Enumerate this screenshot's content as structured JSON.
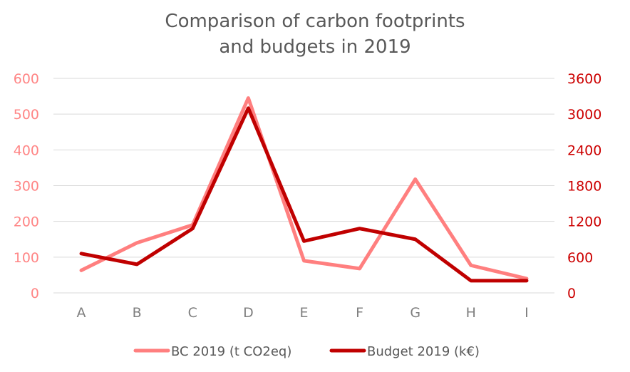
{
  "chart_data": {
    "type": "line",
    "title_lines": [
      "Comparison of carbon footprints",
      "and budgets in 2019"
    ],
    "categories": [
      "A",
      "B",
      "C",
      "D",
      "E",
      "F",
      "G",
      "H",
      "I"
    ],
    "y_left": {
      "ylim": [
        0,
        600
      ],
      "ticks": [
        "0",
        "100",
        "200",
        "300",
        "400",
        "500",
        "600"
      ],
      "color": "#ff8585"
    },
    "y_right": {
      "ylim": [
        0,
        3600
      ],
      "ticks": [
        "0",
        "600",
        "1200",
        "1800",
        "2400",
        "3000",
        "3600"
      ],
      "color": "#cc0000"
    },
    "grid": true,
    "legend_position": "bottom",
    "series": [
      {
        "name": "BC 2019 (t CO2eq)",
        "axis": "left",
        "color": "#ff7f7f",
        "values": [
          63,
          140,
          190,
          545,
          90,
          68,
          318,
          77,
          40
        ]
      },
      {
        "name": "Budget 2019 (k€)",
        "axis": "right",
        "color": "#c00000",
        "values": [
          660,
          480,
          1080,
          3100,
          870,
          1080,
          900,
          205,
          205
        ]
      }
    ]
  }
}
